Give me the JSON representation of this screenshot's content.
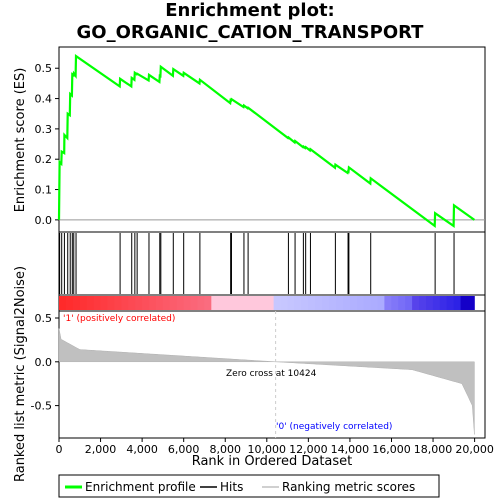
{
  "title_line1": "Enrichment plot:",
  "title_line2": "GO_ORGANIC_CATION_TRANSPORT",
  "chart_data": {
    "type": "line",
    "es_ylabel": "Enrichment score (ES)",
    "metric_ylabel": "Ranked list metric (Signal2Noise)",
    "xlabel": "Rank in Ordered Dataset",
    "x_ticks": [
      0,
      2000,
      4000,
      6000,
      8000,
      10000,
      12000,
      14000,
      16000,
      18000,
      20000
    ],
    "x_tick_labels": [
      "0",
      "2,000",
      "4,000",
      "6,000",
      "8,000",
      "10,000",
      "12,000",
      "14,000",
      "16,000",
      "18,000",
      "20,000"
    ],
    "es_ticks": [
      0.0,
      0.1,
      0.2,
      0.3,
      0.4,
      0.5
    ],
    "es_tick_labels": [
      "0.0",
      "0.1",
      "0.2",
      "0.3",
      "0.4",
      "0.5"
    ],
    "es_ylim": [
      -0.04,
      0.57
    ],
    "metric_ticks": [
      0.5,
      0.0,
      -0.5
    ],
    "metric_tick_labels": [
      "0.5",
      "0.0",
      "-0.5"
    ],
    "metric_ylim": [
      -0.87,
      0.58
    ],
    "xlim": [
      0,
      20500
    ],
    "n_genes": 19990,
    "hits": [
      30,
      130,
      260,
      420,
      540,
      640,
      710,
      820,
      2940,
      3500,
      3650,
      3760,
      4330,
      4850,
      4900,
      5500,
      6000,
      6780,
      8260,
      8300,
      8900,
      9100,
      11040,
      11360,
      11760,
      11870,
      12100,
      13300,
      13910,
      13950,
      15000,
      18100,
      19010
    ],
    "es_curve": {
      "x": [
        0,
        30,
        110,
        130,
        250,
        260,
        400,
        420,
        520,
        540,
        620,
        640,
        700,
        710,
        800,
        820,
        2920,
        2940,
        3480,
        3500,
        3630,
        3650,
        3740,
        3760,
        4310,
        4330,
        4830,
        4850,
        4880,
        4900,
        5480,
        5500,
        5980,
        6000,
        6760,
        6780,
        8240,
        8260,
        8280,
        8300,
        8880,
        8900,
        9080,
        9100,
        11020,
        11040,
        11340,
        11360,
        11740,
        11760,
        11850,
        11870,
        12080,
        12100,
        13280,
        13300,
        13890,
        13910,
        13930,
        13950,
        14980,
        15000,
        18080,
        18100,
        18990,
        19010,
        19990
      ],
      "y": [
        0.0,
        0.19,
        0.185,
        0.225,
        0.22,
        0.28,
        0.27,
        0.35,
        0.345,
        0.415,
        0.41,
        0.48,
        0.477,
        0.483,
        0.475,
        0.54,
        0.44,
        0.465,
        0.44,
        0.468,
        0.462,
        0.485,
        0.48,
        0.482,
        0.46,
        0.478,
        0.455,
        0.475,
        0.474,
        0.505,
        0.475,
        0.497,
        0.475,
        0.485,
        0.45,
        0.462,
        0.385,
        0.395,
        0.394,
        0.398,
        0.372,
        0.377,
        0.368,
        0.37,
        0.27,
        0.272,
        0.255,
        0.26,
        0.24,
        0.242,
        0.237,
        0.24,
        0.229,
        0.233,
        0.172,
        0.182,
        0.155,
        0.16,
        0.159,
        0.173,
        0.12,
        0.137,
        -0.02,
        0.022,
        -0.02,
        0.048,
        0.0
      ]
    },
    "zero_cross_rank": 10424,
    "annotations": {
      "pos_label": "'1' (positively correlated)",
      "neg_label": "'0' (negatively correlated)",
      "zero_label": "Zero cross at 10424"
    },
    "colors": {
      "es_line": "#00ff00",
      "hit": "#000000",
      "metric_fill": "#c0c0c0",
      "pos_label": "#ff0000",
      "neg_label": "#0000ff",
      "zero_line": "#cccccc"
    },
    "legend": {
      "placement": "bottom",
      "items": [
        {
          "label": "Enrichment profile",
          "color": "#00ff00"
        },
        {
          "label": "Hits",
          "color": "#000000"
        },
        {
          "label": "Ranking metric scores",
          "color": "#c0c0c0"
        }
      ]
    }
  }
}
